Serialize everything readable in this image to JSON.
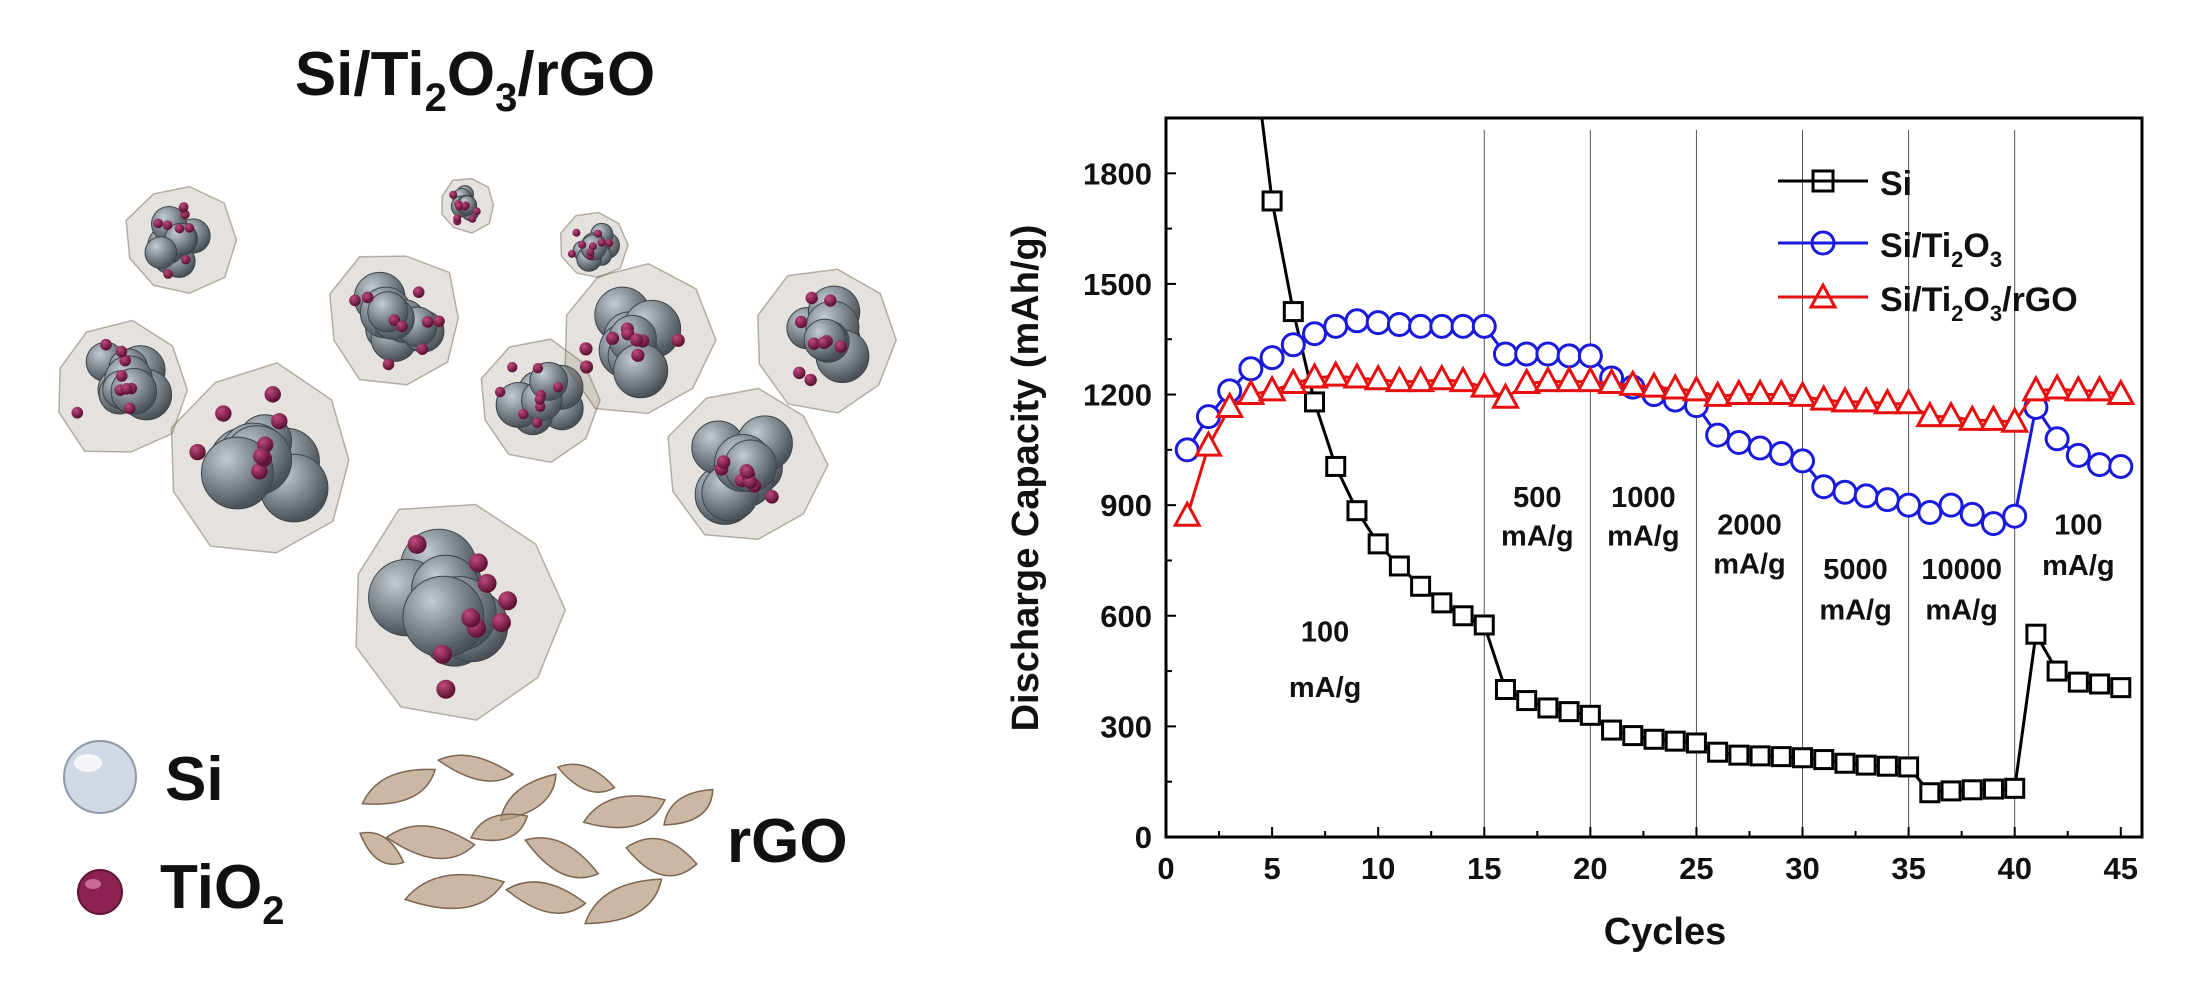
{
  "left_panel": {
    "title": {
      "base1": "Si/Ti",
      "sub1": "2",
      "base2": "O",
      "sub2": "3",
      "base3": "/rGO"
    },
    "legend": {
      "si": {
        "label": "Si",
        "color": "#cfd8e4"
      },
      "tio2": {
        "label": "TiO",
        "sub": "2",
        "color": "#8c2252"
      },
      "rgo": {
        "label": "rGO",
        "color": "#b89f86"
      }
    }
  },
  "chart_data": {
    "type": "line",
    "xlabel": "Cycles",
    "ylabel": "Discharge Capacity (mAh/g)",
    "xlim": [
      0,
      46
    ],
    "ylim": [
      0,
      1950
    ],
    "xticks": [
      0,
      5,
      10,
      15,
      20,
      25,
      30,
      35,
      40,
      45
    ],
    "yticks": [
      0,
      300,
      600,
      900,
      1200,
      1500,
      1800
    ],
    "rate_dividers": [
      15,
      20,
      25,
      30,
      35,
      40
    ],
    "rate_labels": [
      {
        "lines": [
          "100",
          "mA/g"
        ],
        "x": 7.5,
        "y": [
          530,
          380
        ]
      },
      {
        "lines": [
          "500",
          "mA/g"
        ],
        "x": 17.5,
        "y": [
          895,
          790
        ]
      },
      {
        "lines": [
          "1000",
          "mA/g"
        ],
        "x": 22.5,
        "y": [
          895,
          790
        ]
      },
      {
        "lines": [
          "2000",
          "mA/g"
        ],
        "x": 27.5,
        "y": [
          820,
          715
        ]
      },
      {
        "lines": [
          "5000",
          "mA/g"
        ],
        "x": 32.5,
        "y": [
          700,
          590
        ]
      },
      {
        "lines": [
          "10000",
          "mA/g"
        ],
        "x": 37.5,
        "y": [
          700,
          590
        ]
      },
      {
        "lines": [
          "100",
          "mA/g"
        ],
        "x": 43,
        "y": [
          820,
          710
        ]
      }
    ],
    "legend_position": "top-right",
    "x": [
      1,
      2,
      3,
      4,
      5,
      6,
      7,
      8,
      9,
      10,
      11,
      12,
      13,
      14,
      15,
      16,
      17,
      18,
      19,
      20,
      21,
      22,
      23,
      24,
      25,
      26,
      27,
      28,
      29,
      30,
      31,
      32,
      33,
      34,
      35,
      36,
      37,
      38,
      39,
      40,
      41,
      42,
      43,
      44,
      45
    ],
    "series": [
      {
        "name": "Si",
        "color": "#000000",
        "marker": "square",
        "start_point": [
          4.2,
          2100
        ],
        "values": [
          null,
          null,
          null,
          null,
          1725,
          1425,
          1180,
          1005,
          885,
          795,
          735,
          680,
          635,
          600,
          575,
          400,
          370,
          350,
          340,
          330,
          290,
          275,
          265,
          260,
          255,
          230,
          222,
          220,
          218,
          215,
          210,
          200,
          195,
          192,
          190,
          120,
          125,
          128,
          130,
          132,
          550,
          450,
          420,
          415,
          405
        ]
      },
      {
        "name": "Si/Ti2O3",
        "name_parts": {
          "base1": "Si/Ti",
          "sub1": "2",
          "base2": "O",
          "sub2": "3"
        },
        "color": "#1a1adc",
        "marker": "circle",
        "values": [
          1050,
          1140,
          1210,
          1270,
          1300,
          1335,
          1365,
          1385,
          1400,
          1395,
          1390,
          1385,
          1385,
          1385,
          1385,
          1310,
          1310,
          1310,
          1305,
          1305,
          1245,
          1220,
          1200,
          1185,
          1170,
          1090,
          1070,
          1055,
          1040,
          1020,
          950,
          935,
          925,
          915,
          900,
          880,
          900,
          875,
          850,
          870,
          1165,
          1080,
          1035,
          1010,
          1005
        ]
      },
      {
        "name": "Si/Ti2O3/rGO",
        "name_parts": {
          "base1": "Si/Ti",
          "sub1": "2",
          "base2": "O",
          "sub2": "3",
          "base3": "/rGO"
        },
        "color": "#e61010",
        "marker": "triangle",
        "values": [
          870,
          1060,
          1165,
          1200,
          1210,
          1230,
          1245,
          1250,
          1245,
          1240,
          1235,
          1235,
          1240,
          1235,
          1220,
          1190,
          1230,
          1235,
          1235,
          1235,
          1230,
          1225,
          1220,
          1215,
          1210,
          1195,
          1200,
          1200,
          1200,
          1195,
          1185,
          1180,
          1180,
          1175,
          1175,
          1140,
          1140,
          1130,
          1130,
          1125,
          1210,
          1215,
          1210,
          1210,
          1200
        ]
      }
    ]
  }
}
